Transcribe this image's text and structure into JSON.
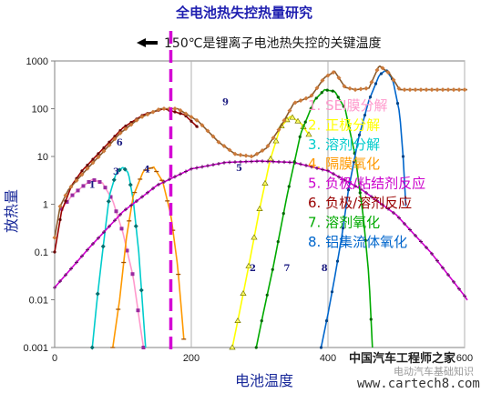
{
  "chart_data": {
    "type": "line",
    "title": "全电池热失控热量研究",
    "annotation": "150℃是锂离子电池热失控的关键温度",
    "marker_x": 170,
    "xlabel": "电池温度",
    "ylabel": "放热量",
    "x_ticks": [
      "0",
      "200",
      "400",
      "600"
    ],
    "y_ticks": [
      "0.001",
      "0.01",
      "0.1",
      "1",
      "10",
      "100",
      "1000"
    ],
    "xlim": [
      0,
      600
    ],
    "ylim": [
      0.001,
      1000
    ],
    "y_scale": "log",
    "grid": "vertical",
    "legend_position": "right",
    "series": [
      {
        "name": "1. SEI膜分解",
        "color": "#ff99cc",
        "marker": "square",
        "marker_color": "#9a2aa0",
        "label": "1",
        "points": [
          [
            10,
            0.8
          ],
          [
            25,
            1.5
          ],
          [
            40,
            2.3
          ],
          [
            55,
            3.3
          ],
          [
            70,
            2.8
          ],
          [
            85,
            1.2
          ],
          [
            100,
            0.25
          ],
          [
            115,
            0.03
          ],
          [
            125,
            0.003
          ],
          [
            130,
            0.001
          ]
        ]
      },
      {
        "name": "2. 正极分解",
        "color": "#ffff00",
        "marker": "triangle",
        "marker_color": "#7a7a00",
        "label": "2",
        "points": [
          [
            260,
            0.001
          ],
          [
            270,
            0.005
          ],
          [
            285,
            0.06
          ],
          [
            300,
            0.8
          ],
          [
            315,
            8
          ],
          [
            330,
            40
          ],
          [
            345,
            70
          ],
          [
            360,
            50
          ],
          [
            375,
            25
          ]
        ]
      },
      {
        "name": "3. 溶剂分解",
        "color": "#00cccc",
        "marker": "diamond",
        "marker_color": "#007070",
        "label": "3",
        "points": [
          [
            55,
            0.001
          ],
          [
            62,
            0.01
          ],
          [
            70,
            0.1
          ],
          [
            80,
            1.5
          ],
          [
            90,
            4.5
          ],
          [
            100,
            6
          ],
          [
            108,
            4.5
          ],
          [
            115,
            1.2
          ],
          [
            123,
            0.1
          ],
          [
            128,
            0.01
          ],
          [
            133,
            0.001
          ]
        ]
      },
      {
        "name": "4. 隔膜氧化",
        "color": "#ff9900",
        "marker": "dash",
        "marker_color": "#a05000",
        "label": "4",
        "points": [
          [
            85,
            0.001
          ],
          [
            95,
            0.01
          ],
          [
            105,
            0.2
          ],
          [
            115,
            1.5
          ],
          [
            130,
            5
          ],
          [
            145,
            6
          ],
          [
            158,
            3
          ],
          [
            170,
            0.6
          ],
          [
            180,
            0.05
          ],
          [
            186,
            0.005
          ],
          [
            190,
            0.001
          ]
        ]
      },
      {
        "name": "5. 负极/粘结剂反应",
        "color": "#cc00cc",
        "marker": "plus",
        "marker_color": "#600060",
        "label": "5",
        "points": [
          [
            0,
            0.018
          ],
          [
            50,
            0.12
          ],
          [
            100,
            0.7
          ],
          [
            150,
            2.5
          ],
          [
            200,
            5.5
          ],
          [
            250,
            7.5
          ],
          [
            300,
            8
          ],
          [
            350,
            7.5
          ],
          [
            400,
            5
          ],
          [
            450,
            2
          ],
          [
            500,
            0.6
          ],
          [
            550,
            0.1
          ],
          [
            600,
            0.012
          ],
          [
            650,
            0.001
          ]
        ]
      },
      {
        "name": "6. 负极/溶剂反应",
        "color": "#990000",
        "marker": "dot",
        "marker_color": "#660000",
        "label": "6",
        "points": [
          [
            0,
            0.1
          ],
          [
            10,
            0.7
          ],
          [
            25,
            2.5
          ],
          [
            40,
            5
          ],
          [
            60,
            10
          ],
          [
            80,
            20
          ],
          [
            100,
            40
          ],
          [
            130,
            75
          ],
          [
            160,
            100
          ],
          [
            190,
            75
          ],
          [
            210,
            40
          ]
        ]
      },
      {
        "name": "7. 溶剂氧化",
        "color": "#00aa00",
        "marker": "dot",
        "marker_color": "#006600",
        "label": "7",
        "points": [
          [
            295,
            0.001
          ],
          [
            305,
            0.005
          ],
          [
            320,
            0.05
          ],
          [
            340,
            1.5
          ],
          [
            360,
            30
          ],
          [
            380,
            150
          ],
          [
            395,
            250
          ],
          [
            410,
            230
          ],
          [
            425,
            100
          ],
          [
            440,
            10
          ],
          [
            452,
            0.5
          ],
          [
            460,
            0.03
          ],
          [
            465,
            0.001
          ]
        ]
      },
      {
        "name": "8. 铝集流体氧化",
        "color": "#0066cc",
        "marker": "dot",
        "marker_color": "#004488",
        "label": "8",
        "points": [
          [
            390,
            0.001
          ],
          [
            400,
            0.005
          ],
          [
            410,
            0.03
          ],
          [
            420,
            0.2
          ],
          [
            430,
            2
          ],
          [
            445,
            25
          ],
          [
            460,
            150
          ],
          [
            475,
            500
          ],
          [
            485,
            650
          ],
          [
            495,
            400
          ],
          [
            505,
            80
          ],
          [
            510,
            10
          ],
          [
            515,
            0.5
          ]
        ]
      },
      {
        "name": "9",
        "color": "#8b5a2b",
        "marker": "diamond",
        "marker_color": "#cc7a3a",
        "label": "9",
        "points": [
          [
            0,
            0.2
          ],
          [
            8,
            0.9
          ],
          [
            20,
            2
          ],
          [
            35,
            3.5
          ],
          [
            50,
            6
          ],
          [
            70,
            12
          ],
          [
            95,
            30
          ],
          [
            125,
            65
          ],
          [
            155,
            100
          ],
          [
            180,
            100
          ],
          [
            210,
            55
          ],
          [
            240,
            20
          ],
          [
            265,
            11
          ],
          [
            290,
            10
          ],
          [
            310,
            15
          ],
          [
            330,
            40
          ],
          [
            350,
            130
          ],
          [
            375,
            180
          ],
          [
            395,
            450
          ],
          [
            410,
            600
          ],
          [
            425,
            280
          ],
          [
            440,
            250
          ],
          [
            460,
            270
          ],
          [
            475,
            800
          ],
          [
            490,
            550
          ],
          [
            505,
            250
          ],
          [
            700,
            250
          ]
        ]
      }
    ],
    "curve_labels": [
      {
        "text": "1",
        "x": 55,
        "y": 2.2
      },
      {
        "text": "3",
        "x": 90,
        "y": 4.2
      },
      {
        "text": "4",
        "x": 135,
        "y": 4.6
      },
      {
        "text": "6",
        "x": 95,
        "y": 17
      },
      {
        "text": "9",
        "x": 250,
        "y": 120
      },
      {
        "text": "5",
        "x": 270,
        "y": 5
      },
      {
        "text": "2",
        "x": 290,
        "y": 0.04
      },
      {
        "text": "7",
        "x": 340,
        "y": 0.04
      },
      {
        "text": "8",
        "x": 395,
        "y": 0.04
      }
    ]
  },
  "watermark": {
    "logo": "中国汽车工程师之家",
    "site": "www.cartech8.com",
    "sub": "电动汽车基础知识"
  }
}
